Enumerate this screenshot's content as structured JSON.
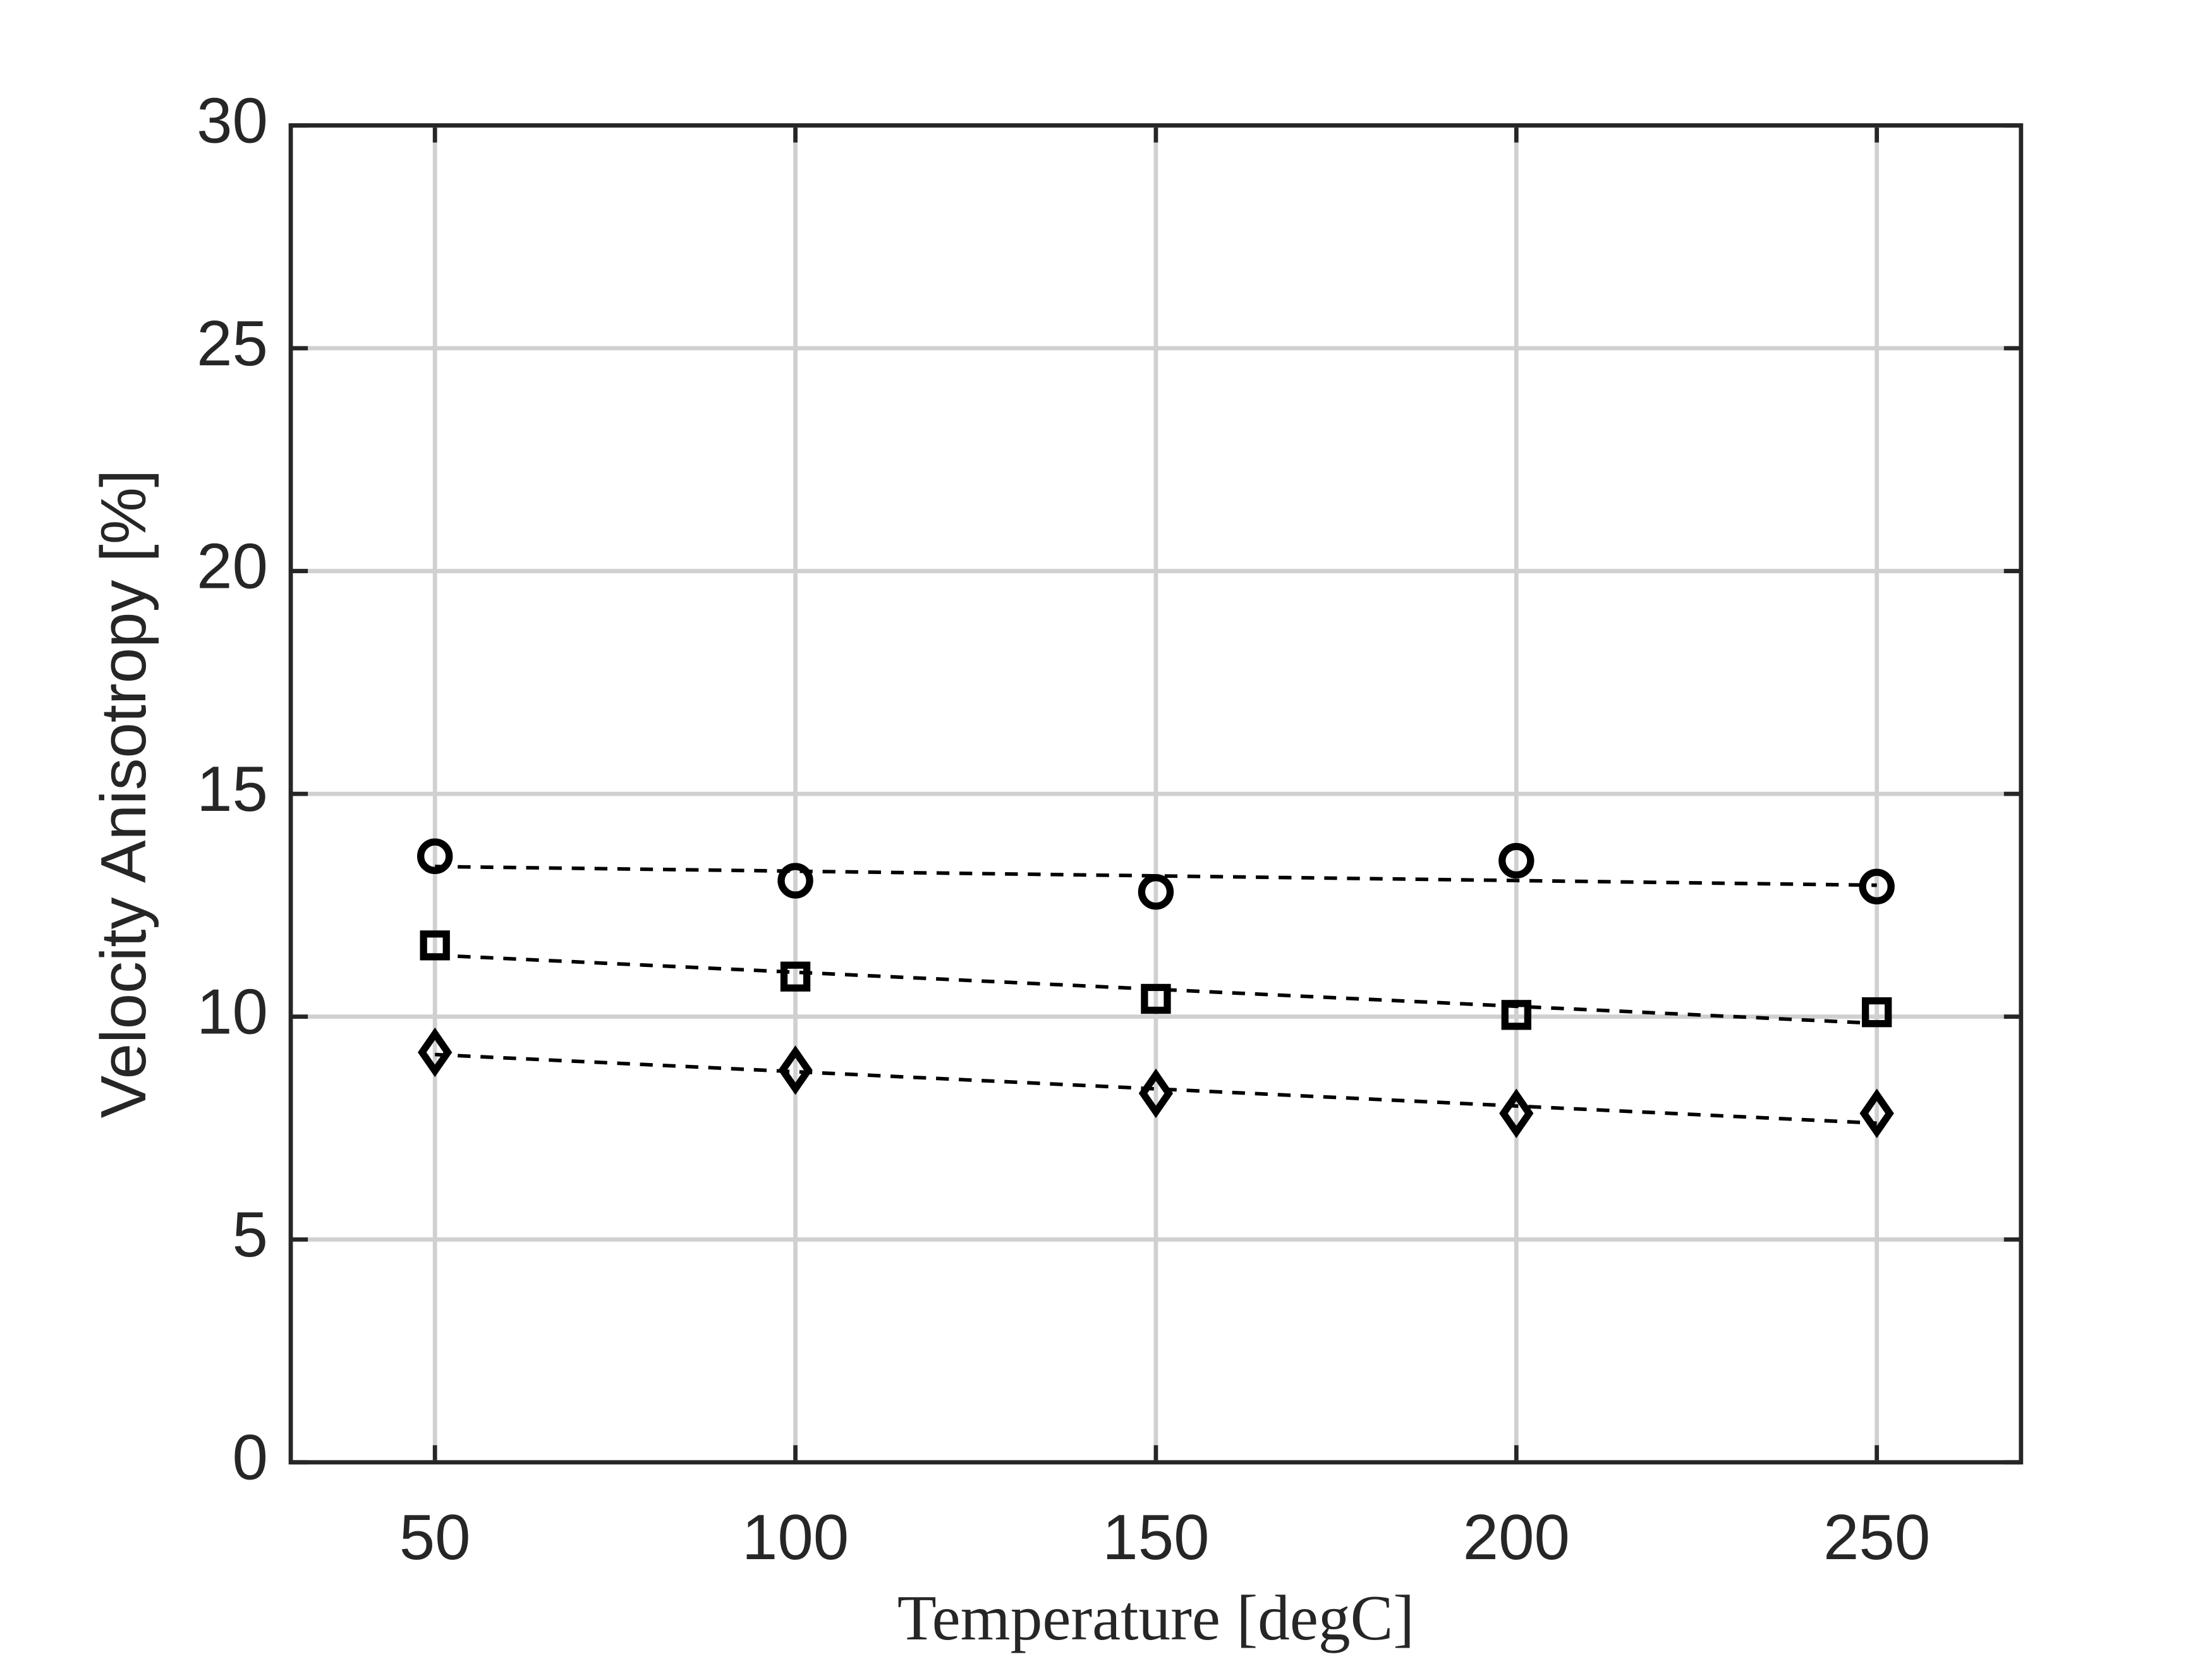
{
  "chart_data": {
    "type": "scatter",
    "xlabel": "Temperature [degC]",
    "ylabel": "Velocity Anisotropy [%]",
    "xlim": [
      30,
      270
    ],
    "xticks": [
      50,
      100,
      150,
      200,
      250
    ],
    "ylim": [
      0,
      30
    ],
    "yticks": [
      0,
      5,
      10,
      15,
      20,
      25,
      30
    ],
    "grid": true,
    "series": [
      {
        "marker": "circle",
        "color": "#000000",
        "x": [
          50,
          100,
          150,
          200,
          250
        ],
        "values": [
          13.6,
          13.05,
          12.8,
          13.5,
          12.92
        ]
      },
      {
        "marker": "square",
        "color": "#000000",
        "x": [
          50,
          100,
          150,
          200,
          250
        ],
        "values": [
          11.6,
          10.9,
          10.4,
          10.04,
          10.1
        ]
      },
      {
        "marker": "diamond",
        "color": "#000000",
        "x": [
          50,
          100,
          150,
          200,
          250
        ],
        "values": [
          9.2,
          8.8,
          8.28,
          7.83,
          7.83
        ]
      },
      {
        "marker": "dashed-line",
        "color": "#000000",
        "x": [
          50,
          250
        ],
        "values": [
          13.37,
          12.95
        ]
      },
      {
        "marker": "dashed-line",
        "color": "#000000",
        "x": [
          50,
          250
        ],
        "values": [
          11.38,
          9.85
        ]
      },
      {
        "marker": "dashed-line",
        "color": "#000000",
        "x": [
          50,
          250
        ],
        "values": [
          9.15,
          7.61
        ]
      }
    ]
  }
}
